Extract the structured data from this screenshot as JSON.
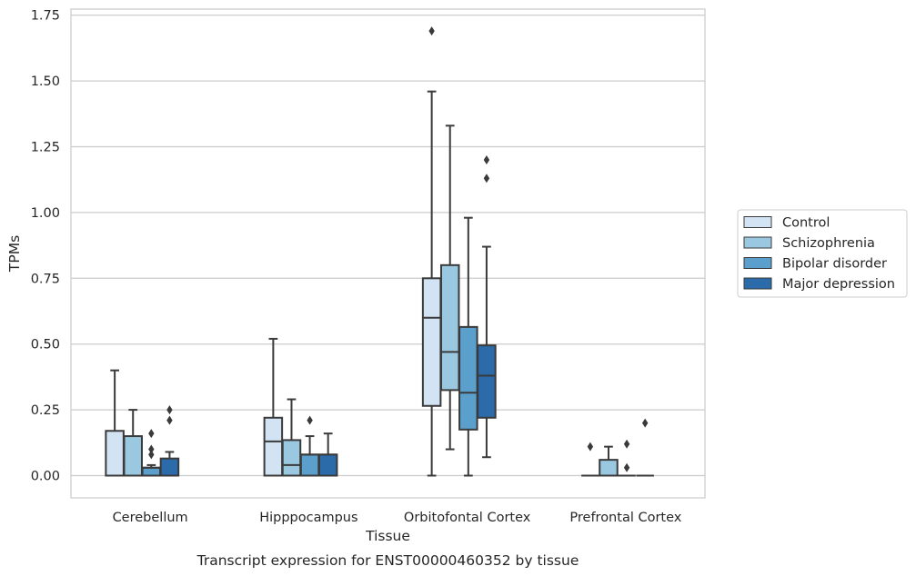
{
  "chart_data": {
    "type": "box",
    "title": "",
    "xlabel": "Tissue",
    "ylabel": "TPMs",
    "caption": "Transcript expression for ENST00000460352 by tissue",
    "ylim": [
      -0.08,
      1.77
    ],
    "yticks": [
      0.0,
      0.25,
      0.5,
      0.75,
      1.0,
      1.25,
      1.5,
      1.75
    ],
    "ytick_labels": [
      "0.00",
      "0.25",
      "0.50",
      "0.75",
      "1.00",
      "1.25",
      "1.50",
      "1.75"
    ],
    "grid": "horizontal",
    "legend_position": "right",
    "categories": [
      "Cerebellum",
      "Hipppocampus",
      "Orbitofontal Cortex",
      "Prefrontal Cortex"
    ],
    "series": [
      {
        "name": "Control",
        "color": "#d2e3f3",
        "boxes": [
          {
            "whislo": 0.0,
            "q1": 0.0,
            "med": 0.0,
            "q3": 0.17,
            "whishi": 0.4,
            "fliers": []
          },
          {
            "whislo": 0.0,
            "q1": 0.0,
            "med": 0.13,
            "q3": 0.22,
            "whishi": 0.52,
            "fliers": []
          },
          {
            "whislo": 0.0,
            "q1": 0.265,
            "med": 0.6,
            "q3": 0.75,
            "whishi": 1.46,
            "fliers": [
              1.69
            ]
          },
          {
            "whislo": 0.0,
            "q1": 0.0,
            "med": 0.0,
            "q3": 0.0,
            "whishi": 0.0,
            "fliers": [
              0.11
            ]
          }
        ]
      },
      {
        "name": "Schizophrenia",
        "color": "#9ac8e0",
        "boxes": [
          {
            "whislo": 0.0,
            "q1": 0.0,
            "med": 0.0,
            "q3": 0.15,
            "whishi": 0.25,
            "fliers": []
          },
          {
            "whislo": 0.0,
            "q1": 0.0,
            "med": 0.04,
            "q3": 0.135,
            "whishi": 0.29,
            "fliers": []
          },
          {
            "whislo": 0.1,
            "q1": 0.325,
            "med": 0.47,
            "q3": 0.8,
            "whishi": 1.33,
            "fliers": []
          },
          {
            "whislo": 0.0,
            "q1": 0.0,
            "med": 0.0,
            "q3": 0.06,
            "whishi": 0.11,
            "fliers": []
          }
        ]
      },
      {
        "name": "Bipolar disorder",
        "color": "#5b9fcc",
        "boxes": [
          {
            "whislo": 0.0,
            "q1": 0.0,
            "med": 0.03,
            "q3": 0.03,
            "whishi": 0.04,
            "fliers": [
              0.08,
              0.1,
              0.16
            ]
          },
          {
            "whislo": 0.0,
            "q1": 0.0,
            "med": 0.08,
            "q3": 0.08,
            "whishi": 0.15,
            "fliers": [
              0.21
            ]
          },
          {
            "whislo": 0.0,
            "q1": 0.175,
            "med": 0.315,
            "q3": 0.565,
            "whishi": 0.98,
            "fliers": []
          },
          {
            "whislo": 0.0,
            "q1": 0.0,
            "med": 0.0,
            "q3": 0.0,
            "whishi": 0.0,
            "fliers": [
              0.03,
              0.12
            ]
          }
        ]
      },
      {
        "name": "Major depression",
        "color": "#2b6ba9",
        "boxes": [
          {
            "whislo": 0.0,
            "q1": 0.0,
            "med": 0.0,
            "q3": 0.065,
            "whishi": 0.09,
            "fliers": [
              0.21,
              0.25
            ]
          },
          {
            "whislo": 0.0,
            "q1": 0.0,
            "med": 0.08,
            "q3": 0.08,
            "whishi": 0.16,
            "fliers": []
          },
          {
            "whislo": 0.07,
            "q1": 0.22,
            "med": 0.38,
            "q3": 0.495,
            "whishi": 0.87,
            "fliers": [
              1.13,
              1.2
            ]
          },
          {
            "whislo": 0.0,
            "q1": 0.0,
            "med": 0.0,
            "q3": 0.0,
            "whishi": 0.0,
            "fliers": [
              0.2
            ]
          }
        ]
      }
    ]
  }
}
